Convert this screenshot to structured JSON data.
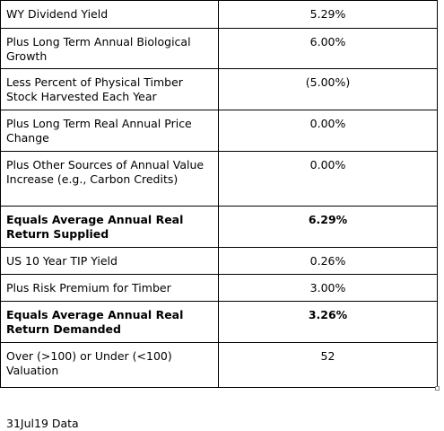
{
  "table": {
    "rows": [
      [
        "WY Dividend Yield",
        "5.29%"
      ],
      [
        "Plus Long Term Annual Biological Growth",
        "6.00%"
      ],
      [
        "Less Percent of Physical Timber Stock Harvested Each Year",
        "(5.00%)"
      ],
      [
        "Plus Long Term Real Annual Price Change",
        "0.00%"
      ],
      [
        "Plus Other Sources of Annual Value Increase (e.g., Carbon Credits)",
        "0.00%"
      ],
      [
        "Equals Average Annual Real Return Supplied",
        "6.29%"
      ],
      [
        "US 10 Year TIP Yield",
        "0.26%"
      ],
      [
        "Plus Risk Premium for Timber",
        "3.00%"
      ],
      [
        "Equals Average Annual Real Return Demanded",
        "3.26%"
      ],
      [
        "Over (>100) or Under (<100) Valuation",
        "52"
      ]
    ]
  },
  "footer": {
    "text": "31Jul19 Data"
  }
}
